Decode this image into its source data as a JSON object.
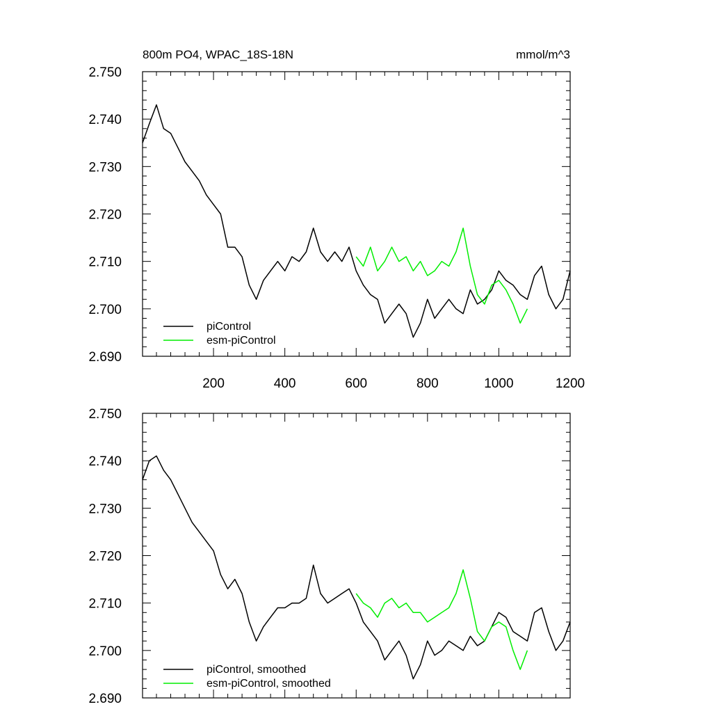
{
  "chart_data": [
    {
      "type": "line",
      "title": "800m PO4, WPAC_18S-18N",
      "units": "mmol/m^3",
      "xlabel": "",
      "ylabel": "",
      "xlim": [
        1,
        1200
      ],
      "ylim": [
        2.69,
        2.75
      ],
      "x_ticks": [
        200,
        400,
        600,
        800,
        1000,
        1200
      ],
      "y_ticks": [
        "2.690",
        "2.700",
        "2.710",
        "2.720",
        "2.730",
        "2.740",
        "2.750"
      ],
      "grid": false,
      "legend_position": "bottom-left",
      "series": [
        {
          "name": "piControl",
          "color": "#000000",
          "x": [
            1,
            20,
            40,
            60,
            80,
            100,
            120,
            140,
            160,
            180,
            200,
            220,
            240,
            260,
            280,
            300,
            320,
            340,
            360,
            380,
            400,
            420,
            440,
            460,
            480,
            500,
            520,
            540,
            560,
            580,
            600,
            620,
            640,
            660,
            680,
            700,
            720,
            740,
            760,
            780,
            800,
            820,
            840,
            860,
            880,
            900,
            920,
            940,
            960,
            980,
            1000,
            1020,
            1040,
            1060,
            1080,
            1100,
            1120,
            1140,
            1160,
            1180,
            1200
          ],
          "y": [
            2.735,
            2.739,
            2.743,
            2.738,
            2.737,
            2.734,
            2.731,
            2.729,
            2.727,
            2.724,
            2.722,
            2.72,
            2.713,
            2.713,
            2.711,
            2.705,
            2.702,
            2.706,
            2.708,
            2.71,
            2.708,
            2.711,
            2.71,
            2.712,
            2.717,
            2.712,
            2.71,
            2.712,
            2.71,
            2.713,
            2.708,
            2.705,
            2.703,
            2.702,
            2.697,
            2.699,
            2.701,
            2.699,
            2.694,
            2.697,
            2.702,
            2.698,
            2.7,
            2.702,
            2.7,
            2.699,
            2.704,
            2.701,
            2.702,
            2.704,
            2.708,
            2.706,
            2.705,
            2.703,
            2.702,
            2.707,
            2.709,
            2.703,
            2.7,
            2.702,
            2.708
          ]
        },
        {
          "name": "esm-piControl",
          "color": "#00ee00",
          "x": [
            600,
            620,
            640,
            660,
            680,
            700,
            720,
            740,
            760,
            780,
            800,
            820,
            840,
            860,
            880,
            900,
            920,
            940,
            960,
            980,
            1000,
            1020,
            1040,
            1060,
            1080
          ],
          "y": [
            2.711,
            2.709,
            2.713,
            2.708,
            2.71,
            2.713,
            2.71,
            2.711,
            2.708,
            2.71,
            2.707,
            2.708,
            2.71,
            2.709,
            2.712,
            2.717,
            2.709,
            2.703,
            2.701,
            2.705,
            2.706,
            2.704,
            2.701,
            2.697,
            2.7
          ]
        }
      ]
    },
    {
      "type": "line",
      "title": "",
      "units": "",
      "xlabel": "",
      "ylabel": "",
      "xlim": [
        1,
        1200
      ],
      "ylim": [
        2.69,
        2.75
      ],
      "x_ticks": [
        200,
        400,
        600,
        800,
        1000,
        1200
      ],
      "y_ticks": [
        "2.690",
        "2.700",
        "2.710",
        "2.720",
        "2.730",
        "2.740",
        "2.750"
      ],
      "grid": false,
      "legend_position": "bottom-left",
      "series": [
        {
          "name": "piControl, smoothed",
          "color": "#000000",
          "x": [
            1,
            20,
            40,
            60,
            80,
            100,
            120,
            140,
            160,
            180,
            200,
            220,
            240,
            260,
            280,
            300,
            320,
            340,
            360,
            380,
            400,
            420,
            440,
            460,
            480,
            500,
            520,
            540,
            560,
            580,
            600,
            620,
            640,
            660,
            680,
            700,
            720,
            740,
            760,
            780,
            800,
            820,
            840,
            860,
            880,
            900,
            920,
            940,
            960,
            980,
            1000,
            1020,
            1040,
            1060,
            1080,
            1100,
            1120,
            1140,
            1160,
            1180,
            1200
          ],
          "y": [
            2.736,
            2.74,
            2.741,
            2.738,
            2.736,
            2.733,
            2.73,
            2.727,
            2.725,
            2.723,
            2.721,
            2.716,
            2.713,
            2.715,
            2.712,
            2.706,
            2.702,
            2.705,
            2.707,
            2.709,
            2.709,
            2.71,
            2.71,
            2.711,
            2.718,
            2.712,
            2.71,
            2.711,
            2.712,
            2.713,
            2.71,
            2.706,
            2.704,
            2.702,
            2.698,
            2.7,
            2.702,
            2.699,
            2.694,
            2.697,
            2.702,
            2.699,
            2.7,
            2.702,
            2.701,
            2.7,
            2.703,
            2.701,
            2.702,
            2.705,
            2.708,
            2.707,
            2.704,
            2.703,
            2.702,
            2.708,
            2.709,
            2.704,
            2.7,
            2.702,
            2.706
          ]
        },
        {
          "name": "esm-piControl, smoothed",
          "color": "#00ee00",
          "x": [
            600,
            620,
            640,
            660,
            680,
            700,
            720,
            740,
            760,
            780,
            800,
            820,
            840,
            860,
            880,
            900,
            920,
            940,
            960,
            980,
            1000,
            1020,
            1040,
            1060,
            1080
          ],
          "y": [
            2.712,
            2.71,
            2.709,
            2.707,
            2.71,
            2.711,
            2.709,
            2.71,
            2.708,
            2.708,
            2.706,
            2.707,
            2.708,
            2.709,
            2.712,
            2.717,
            2.711,
            2.704,
            2.702,
            2.705,
            2.706,
            2.705,
            2.7,
            2.696,
            2.7
          ]
        }
      ]
    }
  ]
}
